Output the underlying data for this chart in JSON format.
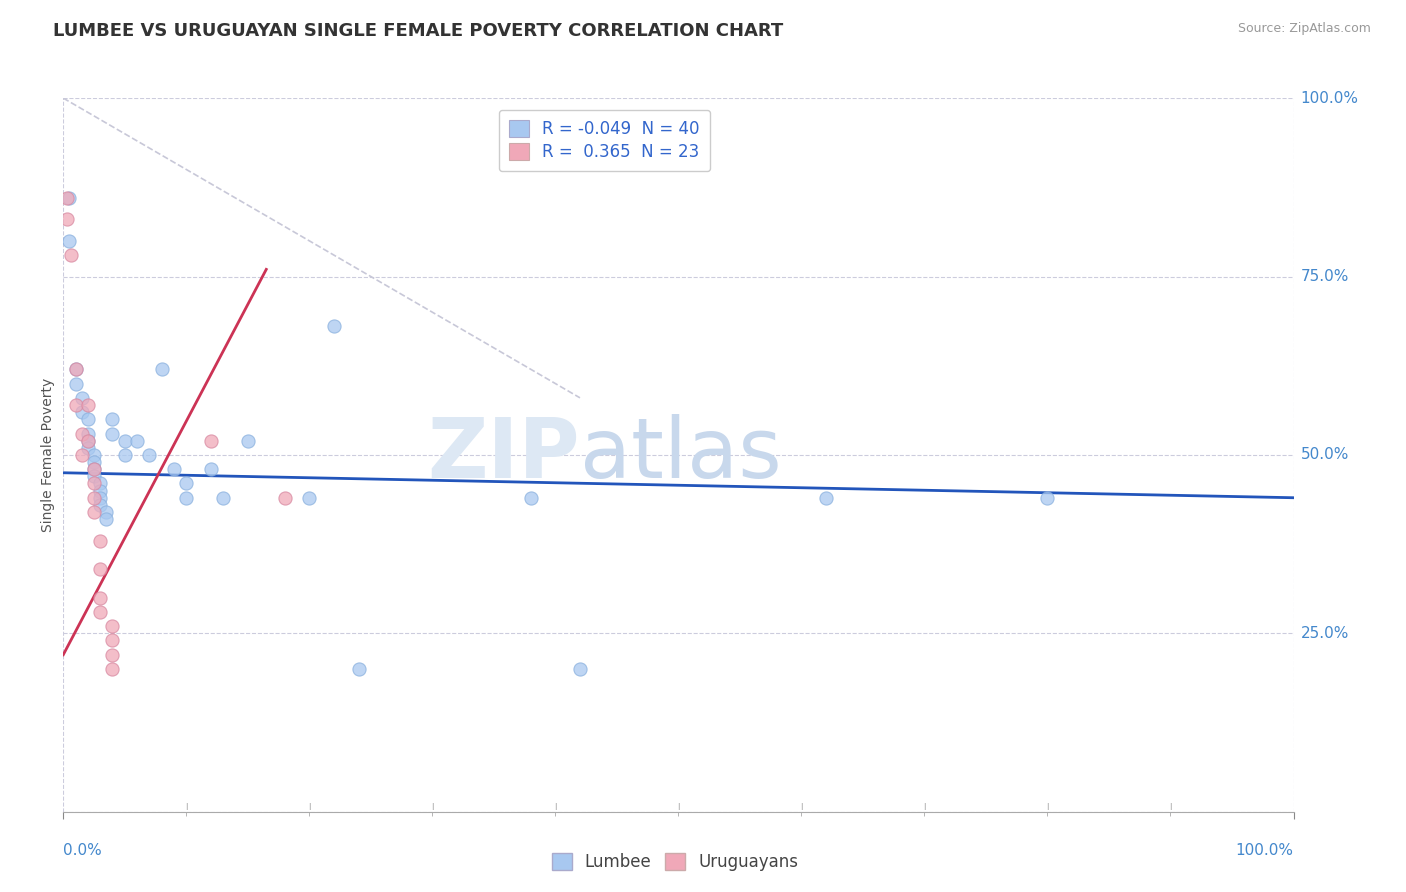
{
  "title": "LUMBEE VS URUGUAYAN SINGLE FEMALE POVERTY CORRELATION CHART",
  "source": "Source: ZipAtlas.com",
  "ylabel": "Single Female Poverty",
  "xlim": [
    0.0,
    1.0
  ],
  "ylim": [
    0.0,
    1.0
  ],
  "xtick_major": [
    0.0,
    1.0
  ],
  "xtick_major_labels": [
    "0.0%",
    "100.0%"
  ],
  "ytick_positions": [
    0.0,
    0.25,
    0.5,
    0.75,
    1.0
  ],
  "ytick_labels": [
    "",
    "25.0%",
    "50.0%",
    "75.0%",
    "100.0%"
  ],
  "watermark_zip": "ZIP",
  "watermark_atlas": "atlas",
  "lumbee_R": "-0.049",
  "lumbee_N": "40",
  "uruguayan_R": "0.365",
  "uruguayan_N": "23",
  "lumbee_color": "#a8c8f0",
  "uruguayan_color": "#f0a8b8",
  "lumbee_line_color": "#2255bb",
  "uruguayan_line_color": "#cc3355",
  "diag_color": "#c8c8d8",
  "background_color": "#ffffff",
  "lumbee_scatter": [
    [
      0.005,
      0.86
    ],
    [
      0.005,
      0.8
    ],
    [
      0.01,
      0.62
    ],
    [
      0.01,
      0.6
    ],
    [
      0.015,
      0.58
    ],
    [
      0.015,
      0.56
    ],
    [
      0.02,
      0.55
    ],
    [
      0.02,
      0.53
    ],
    [
      0.02,
      0.52
    ],
    [
      0.02,
      0.51
    ],
    [
      0.025,
      0.5
    ],
    [
      0.025,
      0.49
    ],
    [
      0.025,
      0.48
    ],
    [
      0.025,
      0.47
    ],
    [
      0.03,
      0.46
    ],
    [
      0.03,
      0.45
    ],
    [
      0.03,
      0.44
    ],
    [
      0.03,
      0.43
    ],
    [
      0.035,
      0.42
    ],
    [
      0.035,
      0.41
    ],
    [
      0.04,
      0.55
    ],
    [
      0.04,
      0.53
    ],
    [
      0.05,
      0.52
    ],
    [
      0.05,
      0.5
    ],
    [
      0.06,
      0.52
    ],
    [
      0.07,
      0.5
    ],
    [
      0.08,
      0.62
    ],
    [
      0.09,
      0.48
    ],
    [
      0.1,
      0.46
    ],
    [
      0.1,
      0.44
    ],
    [
      0.12,
      0.48
    ],
    [
      0.13,
      0.44
    ],
    [
      0.15,
      0.52
    ],
    [
      0.2,
      0.44
    ],
    [
      0.22,
      0.68
    ],
    [
      0.24,
      0.2
    ],
    [
      0.38,
      0.44
    ],
    [
      0.42,
      0.2
    ],
    [
      0.62,
      0.44
    ],
    [
      0.8,
      0.44
    ]
  ],
  "uruguayan_scatter": [
    [
      0.003,
      0.86
    ],
    [
      0.003,
      0.83
    ],
    [
      0.006,
      0.78
    ],
    [
      0.01,
      0.62
    ],
    [
      0.01,
      0.57
    ],
    [
      0.015,
      0.53
    ],
    [
      0.015,
      0.5
    ],
    [
      0.02,
      0.57
    ],
    [
      0.02,
      0.52
    ],
    [
      0.025,
      0.48
    ],
    [
      0.025,
      0.46
    ],
    [
      0.025,
      0.44
    ],
    [
      0.025,
      0.42
    ],
    [
      0.03,
      0.38
    ],
    [
      0.03,
      0.34
    ],
    [
      0.03,
      0.3
    ],
    [
      0.03,
      0.28
    ],
    [
      0.04,
      0.26
    ],
    [
      0.04,
      0.24
    ],
    [
      0.04,
      0.22
    ],
    [
      0.04,
      0.2
    ],
    [
      0.12,
      0.52
    ],
    [
      0.18,
      0.44
    ]
  ],
  "lumbee_trendline": [
    [
      0.0,
      0.475
    ],
    [
      1.0,
      0.44
    ]
  ],
  "uruguayan_trendline": [
    [
      0.0,
      0.22
    ],
    [
      0.165,
      0.76
    ]
  ],
  "diagonal_line": [
    [
      0.0,
      1.0
    ],
    [
      0.42,
      0.58
    ]
  ]
}
